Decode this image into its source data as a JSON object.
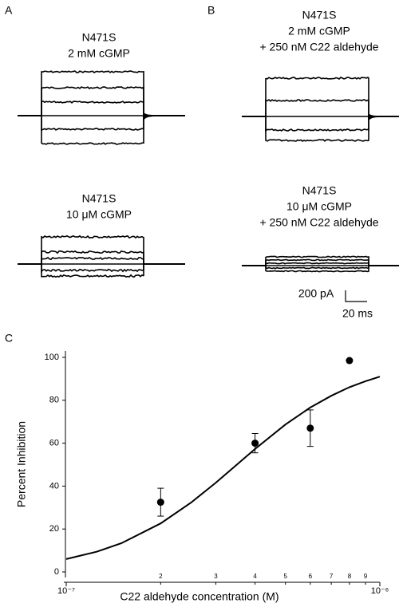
{
  "panels": {
    "a": {
      "letter": "A",
      "top_label": [
        "N471S",
        "2 mM cGMP"
      ],
      "bottom_label": [
        "N471S",
        "10 μM cGMP"
      ]
    },
    "b": {
      "letter": "B",
      "top_label": [
        "N471S",
        "2 mM cGMP",
        "+ 250 nM C22 aldehyde"
      ],
      "bottom_label": [
        "N471S",
        "10 μM cGMP",
        "+ 250 nM C22 aldehyde"
      ]
    },
    "scale_bar": {
      "current": "200 pA",
      "time": "20 ms"
    }
  },
  "chart_data": {
    "type": "scatter",
    "panel_letter": "C",
    "x_label": "C22 aldehyde concentration (M)",
    "y_label": "Percent Inhibition",
    "log_x": true,
    "x": [
      2e-07,
      4e-07,
      6e-07,
      8e-07
    ],
    "values": [
      32.5,
      60,
      67,
      98.5
    ],
    "errors": [
      6.5,
      4.5,
      8.5,
      null
    ],
    "color": "#000000",
    "fit": {
      "x": [
        1e-07,
        1.25e-07,
        1.5e-07,
        2e-07,
        2.5e-07,
        3e-07,
        3.5e-07,
        4e-07,
        5e-07,
        6e-07,
        7e-07,
        8e-07,
        9e-07,
        1e-06
      ],
      "values": [
        6,
        9.4,
        13.4,
        22.6,
        32.3,
        41.6,
        50,
        57.3,
        68.7,
        76.6,
        82.1,
        86.1,
        88.9,
        91
      ]
    },
    "xlim": [
      1e-07,
      1e-06
    ],
    "ylim": [
      0,
      100
    ],
    "xticks": [
      {
        "value": 1e-07,
        "label": "10⁻⁷"
      },
      {
        "value": 2e-07,
        "label": "2"
      },
      {
        "value": 3e-07,
        "label": "3"
      },
      {
        "value": 4e-07,
        "label": "4"
      },
      {
        "value": 5e-07,
        "label": "5"
      },
      {
        "value": 6e-07,
        "label": "6"
      },
      {
        "value": 7e-07,
        "label": "7"
      },
      {
        "value": 8e-07,
        "label": "8"
      },
      {
        "value": 9e-07,
        "label": "9"
      },
      {
        "value": 1e-06,
        "label": "10⁻⁶"
      }
    ],
    "yticks": [
      0,
      20,
      40,
      60,
      80,
      100
    ]
  }
}
